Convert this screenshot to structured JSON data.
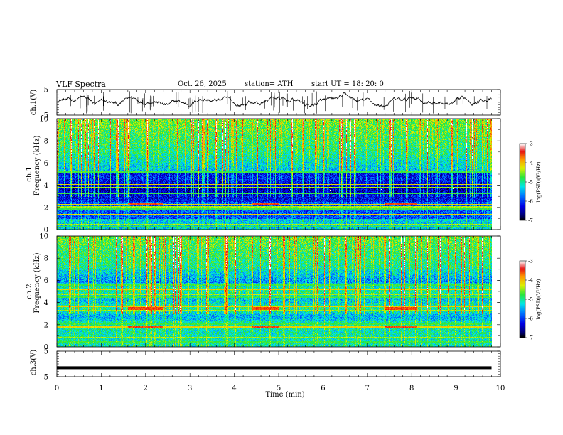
{
  "header": {
    "title": "VLF  Spectra",
    "date": "Oct. 26, 2025",
    "station": "station= ATH",
    "start": "start  UT  =   18: 20: 0"
  },
  "chart_data": [
    {
      "type": "line",
      "name": "ch1-waveform",
      "ylabel": "ch.1(V)",
      "ylim": [
        -5,
        5
      ],
      "yticks": [
        "5",
        "-5"
      ],
      "xlim": [
        0,
        10
      ]
    },
    {
      "type": "heatmap",
      "name": "ch1-spectrogram",
      "ylabel_top": "ch.1",
      "ylabel": "Frequency  (kHz)",
      "ylim": [
        0,
        10
      ],
      "yticks": [
        "0",
        "2",
        "4",
        "6",
        "8",
        "10"
      ],
      "data_extent_min": 9.8,
      "colorbar": {
        "label": "log(PSD)(V²/Hz)",
        "range": [
          -7,
          -3
        ],
        "ticks": [
          "-3",
          "-4",
          "-5",
          "-6",
          "-7"
        ]
      },
      "bands_khz": [
        0.3,
        0.5,
        1.4,
        1.9,
        2.1,
        2.3,
        3.3,
        3.8,
        4.1,
        5.2
      ],
      "event_intervals_min": [
        [
          1.6,
          2.4
        ],
        [
          4.4,
          5.0
        ],
        [
          7.4,
          8.1
        ]
      ]
    },
    {
      "type": "heatmap",
      "name": "ch2-spectrogram",
      "ylabel_top": "ch.2",
      "ylabel": "Frequency  (kHz)",
      "ylim": [
        0,
        10
      ],
      "yticks": [
        "0",
        "2",
        "4",
        "6",
        "8",
        "10"
      ],
      "data_extent_min": 9.8,
      "colorbar": {
        "label": "log(PSD)(V²/Hz)",
        "range": [
          -7,
          -3
        ],
        "ticks": [
          "-3",
          "-4",
          "-5",
          "-6",
          "-7"
        ]
      },
      "bands_khz": [
        0.5,
        0.9,
        1.8,
        2.1,
        3.3,
        3.7,
        4.5,
        4.8,
        5.2,
        5.6
      ],
      "event_intervals_min": [
        [
          1.6,
          2.4
        ],
        [
          4.4,
          5.0
        ],
        [
          7.4,
          8.1
        ]
      ]
    },
    {
      "type": "line",
      "name": "ch3-waveform",
      "ylabel": "ch.3(V)",
      "ylim": [
        -5,
        5
      ],
      "yticks": [
        "5",
        "-5"
      ],
      "level": -1.5,
      "xlim": [
        0,
        10
      ],
      "xticks": [
        "0",
        "1",
        "2",
        "3",
        "4",
        "5",
        "6",
        "7",
        "8",
        "9",
        "10"
      ],
      "xlabel": "Time  (min)"
    }
  ]
}
